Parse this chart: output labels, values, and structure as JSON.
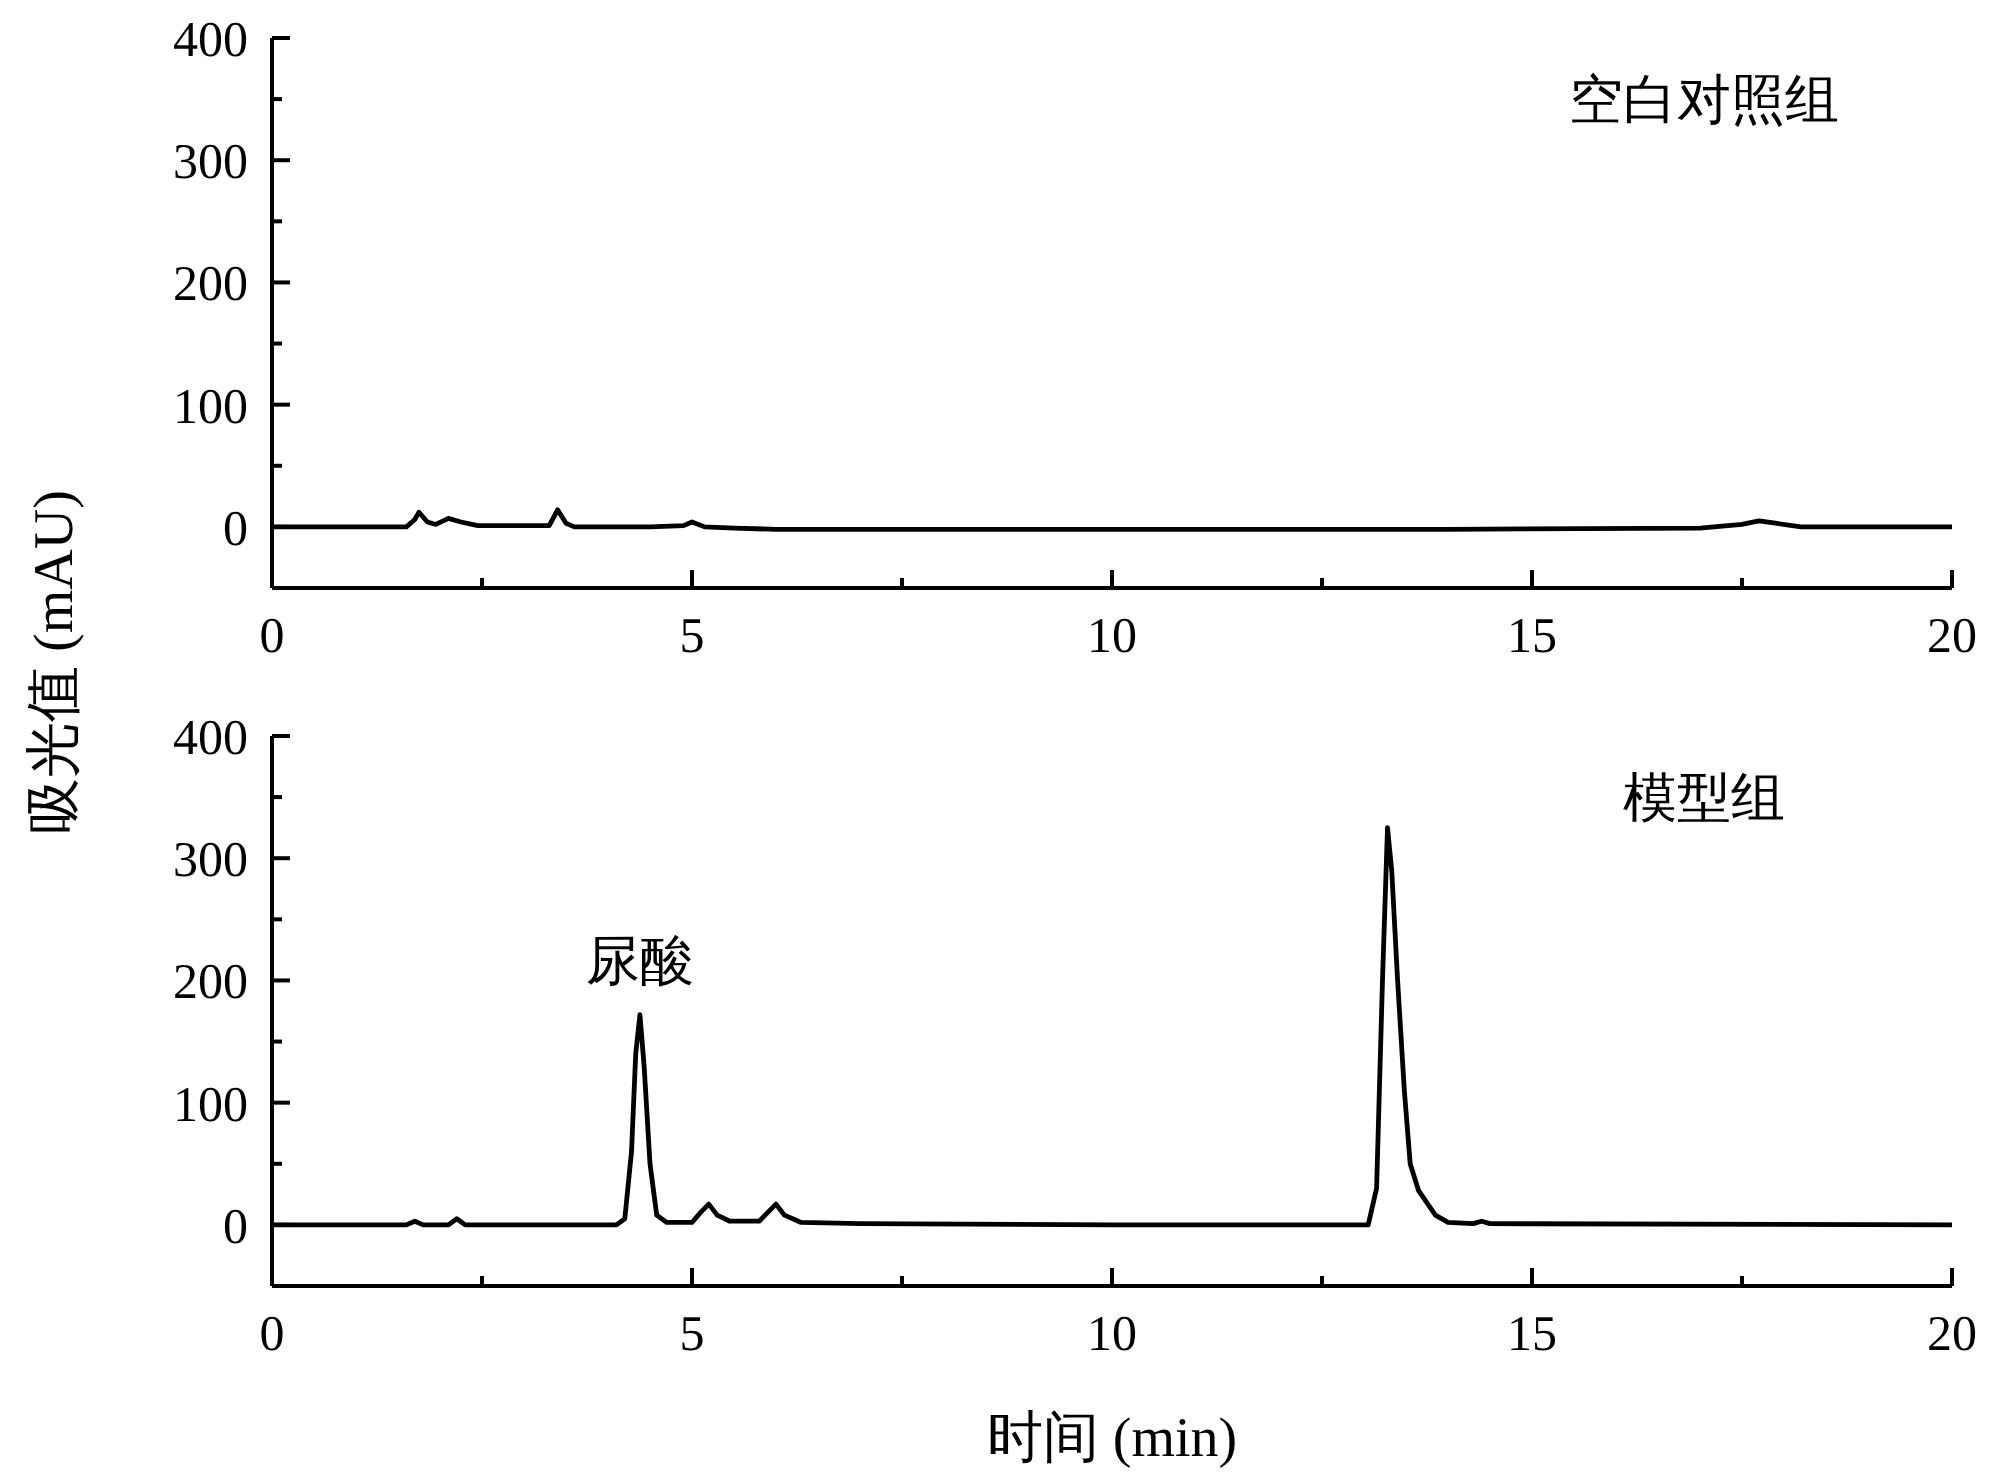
{
  "chart_data": [
    {
      "type": "line",
      "ylabel": "吸光值 (mAU)",
      "annotations": [
        "空白对照组"
      ],
      "xlim": [
        0,
        20
      ],
      "ylim": [
        -50,
        400
      ],
      "xticks": [
        0,
        {
          "value": 2.5,
          "label": null
        },
        5,
        {
          "value": 7.5,
          "label": null
        },
        10,
        {
          "value": 12.5,
          "label": null
        },
        15,
        {
          "value": 17.5,
          "label": null
        },
        20
      ],
      "yticks": [
        {
          "value": -50,
          "label": null
        },
        0,
        {
          "value": 50,
          "label": null
        },
        100,
        {
          "value": 150,
          "label": null
        },
        200,
        {
          "value": 250,
          "label": null
        },
        300,
        {
          "value": 350,
          "label": null
        },
        400
      ],
      "grid": false,
      "line_style": "solid",
      "series": [
        {
          "color": "#000000",
          "x": [
            0,
            1.6,
            1.7,
            1.75,
            1.85,
            1.95,
            2.1,
            2.25,
            2.45,
            3.0,
            3.3,
            3.4,
            3.5,
            3.6,
            4.5,
            4.9,
            5.0,
            5.15,
            5.5,
            6.0,
            8.0,
            10,
            12,
            14,
            17.0,
            17.5,
            17.7,
            17.9,
            18.2,
            20
          ],
          "values": [
            0,
            0,
            6,
            12,
            4,
            2,
            7,
            4,
            1,
            1,
            1,
            14,
            3,
            0,
            0,
            1,
            4,
            0,
            -1,
            -2,
            -2,
            -2,
            -2,
            -2,
            -1,
            2,
            5,
            3,
            0,
            0
          ]
        }
      ]
    },
    {
      "type": "line",
      "xlabel": "时间 (min)",
      "annotations": [
        "模型组",
        {
          "text": "尿酸",
          "x": 4.38,
          "y": 172
        }
      ],
      "xlim": [
        0,
        20
      ],
      "ylim": [
        -50,
        400
      ],
      "xticks": [
        0,
        {
          "value": 2.5,
          "label": null
        },
        5,
        {
          "value": 7.5,
          "label": null
        },
        10,
        {
          "value": 12.5,
          "label": null
        },
        15,
        {
          "value": 17.5,
          "label": null
        },
        20
      ],
      "yticks": [
        {
          "value": -50,
          "label": null
        },
        0,
        {
          "value": 50,
          "label": null
        },
        100,
        {
          "value": 150,
          "label": null
        },
        200,
        {
          "value": 250,
          "label": null
        },
        300,
        {
          "value": 350,
          "label": null
        },
        400
      ],
      "grid": false,
      "line_style": "solid",
      "series": [
        {
          "color": "#000000",
          "x": [
            0,
            1.6,
            1.7,
            1.8,
            2.1,
            2.2,
            2.3,
            4.1,
            4.2,
            4.28,
            4.33,
            4.38,
            4.43,
            4.5,
            4.58,
            4.7,
            5.0,
            5.1,
            5.2,
            5.3,
            5.45,
            5.8,
            5.9,
            6.0,
            6.1,
            6.3,
            7,
            10,
            13.05,
            13.15,
            13.22,
            13.28,
            13.33,
            13.4,
            13.48,
            13.55,
            13.65,
            13.75,
            13.85,
            14.0,
            14.3,
            14.4,
            14.5,
            20
          ],
          "values": [
            0,
            0,
            3,
            0,
            0,
            5,
            0,
            0,
            5,
            60,
            140,
            172,
            130,
            50,
            8,
            2,
            2,
            10,
            17,
            8,
            3,
            3,
            10,
            17,
            8,
            2,
            1,
            0,
            0,
            30,
            200,
            325,
            290,
            200,
            110,
            50,
            28,
            18,
            8,
            2,
            1,
            3,
            1,
            0
          ]
        }
      ]
    }
  ]
}
